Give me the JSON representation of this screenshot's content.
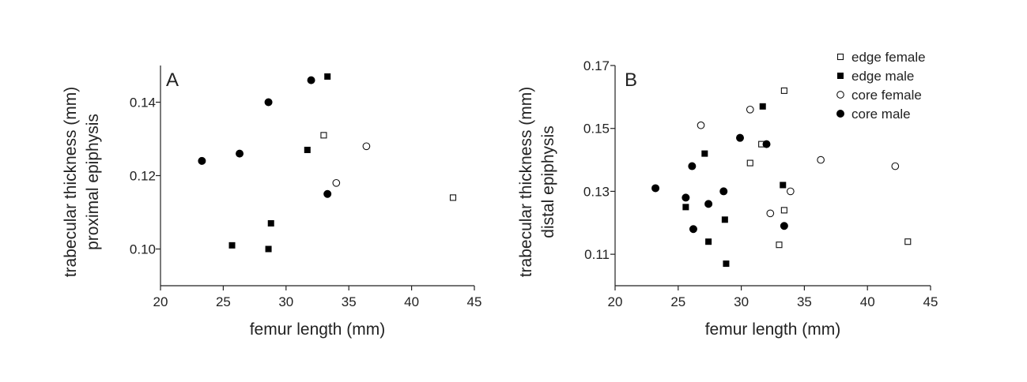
{
  "chart_data": [
    {
      "type": "scatter",
      "panel_label": "A",
      "xlabel": "femur length (mm)",
      "ylabel": [
        "trabecular thickness (mm)",
        "proximal epiphysis"
      ],
      "xlim": [
        20,
        45
      ],
      "ylim": [
        0.09,
        0.15
      ],
      "x_ticks": [
        20,
        25,
        30,
        35,
        40,
        45
      ],
      "y_ticks": [
        0.1,
        0.12,
        0.14
      ],
      "y_tick_labels": [
        "0.10",
        "0.12",
        "0.14"
      ],
      "series": [
        {
          "key": "edge_female",
          "marker": "open-square",
          "points": [
            [
              33.0,
              0.131
            ],
            [
              43.3,
              0.114
            ]
          ]
        },
        {
          "key": "edge_male",
          "marker": "filled-square",
          "points": [
            [
              33.3,
              0.147
            ],
            [
              31.7,
              0.127
            ],
            [
              28.8,
              0.107
            ],
            [
              25.7,
              0.101
            ],
            [
              28.6,
              0.1
            ]
          ]
        },
        {
          "key": "core_female",
          "marker": "open-circle",
          "points": [
            [
              36.4,
              0.128
            ],
            [
              34.0,
              0.118
            ]
          ]
        },
        {
          "key": "core_male",
          "marker": "filled-circle",
          "points": [
            [
              32.0,
              0.146
            ],
            [
              28.6,
              0.14
            ],
            [
              26.3,
              0.126
            ],
            [
              23.3,
              0.124
            ],
            [
              33.3,
              0.115
            ]
          ]
        }
      ]
    },
    {
      "type": "scatter",
      "panel_label": "B",
      "xlabel": "femur length (mm)",
      "ylabel": [
        "trabecular thickness (mm)",
        "distal epiphysis"
      ],
      "xlim": [
        20,
        45
      ],
      "ylim": [
        0.1,
        0.17
      ],
      "x_ticks": [
        20,
        25,
        30,
        35,
        40,
        45
      ],
      "y_ticks": [
        0.11,
        0.13,
        0.15,
        0.17
      ],
      "y_tick_labels": [
        "0.11",
        "0.13",
        "0.15",
        "0.17"
      ],
      "legend_position": "top-right",
      "series": [
        {
          "key": "edge_female",
          "name": "edge female",
          "marker": "open-square",
          "points": [
            [
              33.4,
              0.162
            ],
            [
              31.6,
              0.145
            ],
            [
              30.7,
              0.139
            ],
            [
              33.4,
              0.124
            ],
            [
              33.0,
              0.113
            ],
            [
              43.2,
              0.114
            ]
          ]
        },
        {
          "key": "edge_male",
          "name": "edge male",
          "marker": "filled-square",
          "points": [
            [
              31.7,
              0.157
            ],
            [
              27.1,
              0.142
            ],
            [
              33.3,
              0.132
            ],
            [
              25.6,
              0.125
            ],
            [
              28.7,
              0.121
            ],
            [
              27.4,
              0.114
            ],
            [
              28.8,
              0.107
            ]
          ]
        },
        {
          "key": "core_female",
          "name": "core female",
          "marker": "open-circle",
          "points": [
            [
              30.7,
              0.156
            ],
            [
              26.8,
              0.151
            ],
            [
              36.3,
              0.14
            ],
            [
              42.2,
              0.138
            ],
            [
              33.9,
              0.13
            ],
            [
              32.3,
              0.123
            ]
          ]
        },
        {
          "key": "core_male",
          "name": "core male",
          "marker": "filled-circle",
          "points": [
            [
              29.9,
              0.147
            ],
            [
              32.0,
              0.145
            ],
            [
              26.1,
              0.138
            ],
            [
              23.2,
              0.131
            ],
            [
              28.6,
              0.13
            ],
            [
              25.6,
              0.128
            ],
            [
              27.4,
              0.126
            ],
            [
              26.2,
              0.118
            ],
            [
              33.4,
              0.119
            ]
          ]
        }
      ]
    }
  ]
}
